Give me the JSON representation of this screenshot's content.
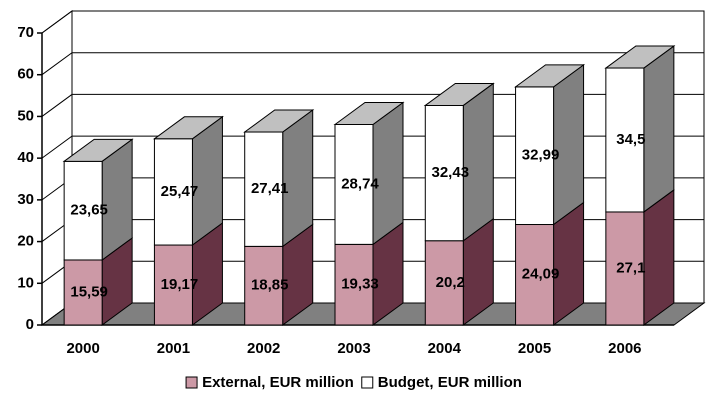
{
  "chart_data": {
    "type": "bar3d_stacked",
    "categories": [
      "2000",
      "2001",
      "2002",
      "2003",
      "2004",
      "2005",
      "2006"
    ],
    "series": [
      {
        "name": "External, EUR million",
        "color": "#cc99a6",
        "side_color": "#663344",
        "top_color": "#b38090",
        "values": [
          15.59,
          19.17,
          18.85,
          19.33,
          20.2,
          24.09,
          27.1
        ],
        "value_labels": [
          "15,59",
          "19,17",
          "18,85",
          "19,33",
          "20,2",
          "24,09",
          "27,1"
        ]
      },
      {
        "name": "Budget, EUR million",
        "color": "#ffffff",
        "side_color": "#808080",
        "top_color": "#c0c0c0",
        "values": [
          23.65,
          25.47,
          27.41,
          28.74,
          32.43,
          32.99,
          34.5
        ],
        "value_labels": [
          "23,65",
          "25,47",
          "27,41",
          "28,74",
          "32,43",
          "32,99",
          "34,5"
        ]
      }
    ],
    "ylim": [
      0,
      70
    ],
    "yticks": [
      0,
      10,
      20,
      30,
      40,
      50,
      60,
      70
    ],
    "grid": true,
    "legend": "bottom"
  }
}
